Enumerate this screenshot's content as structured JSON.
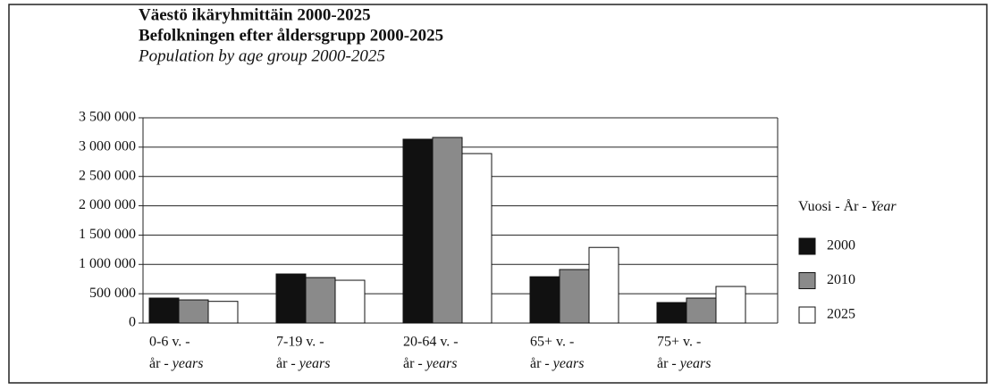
{
  "chart_data": {
    "type": "bar",
    "title": "Väestö ikäryhmittäin 2000-2025",
    "subtitle": "Befolkningen efter åldersgrupp 2000-2025",
    "subtitle_en": "Population by age group 2000-2025",
    "categories": [
      [
        "0-6 v. -",
        "år -",
        "years"
      ],
      [
        "7-19 v. -",
        "år -",
        "years"
      ],
      [
        "20-64 v. -",
        "år -",
        "years"
      ],
      [
        "65+ v. -",
        "år -",
        "years"
      ],
      [
        "75+ v. -",
        "år -",
        "years"
      ]
    ],
    "legend_title": [
      "Vuosi - År -",
      "Year"
    ],
    "series": [
      {
        "name": "2000",
        "color": "#111111",
        "values": [
          426000,
          837000,
          3135000,
          790000,
          350000
        ]
      },
      {
        "name": "2010",
        "color": "#8a8a8a",
        "values": [
          395000,
          776000,
          3165000,
          913000,
          426000
        ]
      },
      {
        "name": "2025",
        "color": "#ffffff",
        "values": [
          370000,
          730000,
          2890000,
          1290000,
          624000
        ]
      }
    ],
    "ylim": [
      0,
      3500000
    ],
    "yticks": [
      0,
      {
        "value": 500000,
        "label": "500 000"
      },
      {
        "value": 1000000,
        "label": "1 000 000"
      },
      {
        "value": 1500000,
        "label": "1 500 000"
      },
      {
        "value": 2000000,
        "label": "2 000 000"
      },
      {
        "value": 2500000,
        "label": "2 500 000"
      },
      {
        "value": 3000000,
        "label": "3 000 000"
      },
      {
        "value": 3500000,
        "label": "3 500 000"
      }
    ],
    "grid": true,
    "legend": "right"
  }
}
